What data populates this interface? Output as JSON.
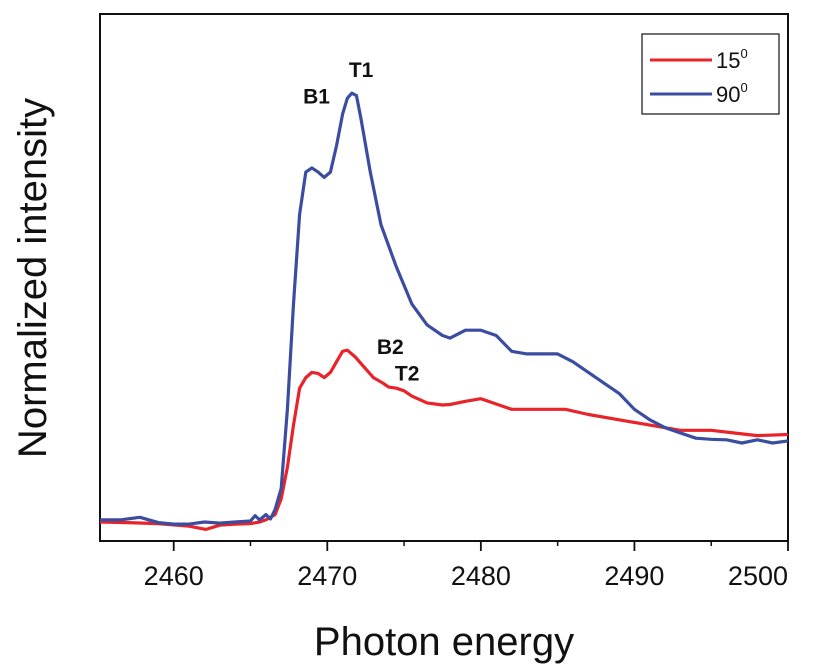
{
  "chart_data": {
    "type": "line",
    "title": "",
    "xlabel": "Photon energy",
    "ylabel": "Normalized intensity",
    "xlim": [
      2455.2,
      2500
    ],
    "ylim": [
      0,
      1
    ],
    "xticks": [
      2460,
      2470,
      2480,
      2490,
      2500
    ],
    "yticks_shown": false,
    "grid": false,
    "legend_position": "top-right",
    "series": [
      {
        "name": "15",
        "name_superscript": "0",
        "color": "#e8232a",
        "points": [
          [
            2455.2,
            0.036
          ],
          [
            2457.0,
            0.035
          ],
          [
            2459.0,
            0.033
          ],
          [
            2461.0,
            0.028
          ],
          [
            2462.1,
            0.022
          ],
          [
            2463.0,
            0.03
          ],
          [
            2464.0,
            0.032
          ],
          [
            2465.0,
            0.033
          ],
          [
            2465.6,
            0.036
          ],
          [
            2466.0,
            0.04
          ],
          [
            2466.6,
            0.05
          ],
          [
            2467.0,
            0.08
          ],
          [
            2467.4,
            0.14
          ],
          [
            2467.8,
            0.22
          ],
          [
            2468.2,
            0.29
          ],
          [
            2468.6,
            0.31
          ],
          [
            2469.0,
            0.32
          ],
          [
            2469.4,
            0.318
          ],
          [
            2469.8,
            0.31
          ],
          [
            2470.2,
            0.32
          ],
          [
            2470.6,
            0.34
          ],
          [
            2471.0,
            0.36
          ],
          [
            2471.3,
            0.362
          ],
          [
            2471.8,
            0.35
          ],
          [
            2472.4,
            0.33
          ],
          [
            2473.0,
            0.31
          ],
          [
            2473.6,
            0.3
          ],
          [
            2474.0,
            0.292
          ],
          [
            2474.5,
            0.29
          ],
          [
            2475.0,
            0.285
          ],
          [
            2475.5,
            0.275
          ],
          [
            2476.5,
            0.262
          ],
          [
            2477.5,
            0.258
          ],
          [
            2478.0,
            0.259
          ],
          [
            2479.0,
            0.265
          ],
          [
            2480.0,
            0.27
          ],
          [
            2481.0,
            0.26
          ],
          [
            2482.0,
            0.25
          ],
          [
            2484.0,
            0.25
          ],
          [
            2485.5,
            0.25
          ],
          [
            2487.0,
            0.24
          ],
          [
            2489.0,
            0.23
          ],
          [
            2491.0,
            0.22
          ],
          [
            2493.0,
            0.21
          ],
          [
            2495.0,
            0.21
          ],
          [
            2496.5,
            0.205
          ],
          [
            2498.0,
            0.2
          ],
          [
            2500.0,
            0.202
          ]
        ]
      },
      {
        "name": "90",
        "name_superscript": "0",
        "color": "#3b4da1",
        "points": [
          [
            2455.2,
            0.04
          ],
          [
            2456.5,
            0.04
          ],
          [
            2457.8,
            0.045
          ],
          [
            2459.0,
            0.035
          ],
          [
            2460.0,
            0.032
          ],
          [
            2461.0,
            0.032
          ],
          [
            2462.0,
            0.036
          ],
          [
            2463.0,
            0.034
          ],
          [
            2464.0,
            0.036
          ],
          [
            2465.0,
            0.038
          ],
          [
            2465.3,
            0.048
          ],
          [
            2465.6,
            0.04
          ],
          [
            2466.0,
            0.05
          ],
          [
            2466.3,
            0.042
          ],
          [
            2466.6,
            0.06
          ],
          [
            2467.0,
            0.1
          ],
          [
            2467.4,
            0.25
          ],
          [
            2467.8,
            0.45
          ],
          [
            2468.2,
            0.62
          ],
          [
            2468.6,
            0.7
          ],
          [
            2469.0,
            0.708
          ],
          [
            2469.4,
            0.7
          ],
          [
            2469.8,
            0.69
          ],
          [
            2470.2,
            0.7
          ],
          [
            2470.6,
            0.75
          ],
          [
            2471.0,
            0.81
          ],
          [
            2471.3,
            0.84
          ],
          [
            2471.6,
            0.85
          ],
          [
            2471.9,
            0.845
          ],
          [
            2472.2,
            0.8
          ],
          [
            2472.8,
            0.7
          ],
          [
            2473.5,
            0.6
          ],
          [
            2474.5,
            0.52
          ],
          [
            2475.5,
            0.45
          ],
          [
            2476.5,
            0.41
          ],
          [
            2477.5,
            0.39
          ],
          [
            2478.0,
            0.385
          ],
          [
            2479.0,
            0.4
          ],
          [
            2480.0,
            0.4
          ],
          [
            2481.0,
            0.39
          ],
          [
            2482.0,
            0.36
          ],
          [
            2483.0,
            0.355
          ],
          [
            2484.0,
            0.355
          ],
          [
            2485.0,
            0.355
          ],
          [
            2486.0,
            0.34
          ],
          [
            2487.0,
            0.32
          ],
          [
            2488.0,
            0.3
          ],
          [
            2489.0,
            0.28
          ],
          [
            2490.0,
            0.25
          ],
          [
            2491.0,
            0.23
          ],
          [
            2492.0,
            0.215
          ],
          [
            2493.0,
            0.205
          ],
          [
            2494.0,
            0.195
          ],
          [
            2495.0,
            0.193
          ],
          [
            2496.0,
            0.192
          ],
          [
            2497.0,
            0.186
          ],
          [
            2498.0,
            0.192
          ],
          [
            2499.0,
            0.186
          ],
          [
            2500.0,
            0.19
          ]
        ]
      }
    ],
    "annotations": [
      {
        "text": "T1",
        "x": 2472.2,
        "y": 0.88
      },
      {
        "text": "B1",
        "x": 2469.3,
        "y": 0.83
      },
      {
        "text": "B2",
        "x": 2474.1,
        "y": 0.355
      },
      {
        "text": "T2",
        "x": 2475.2,
        "y": 0.305
      }
    ]
  }
}
